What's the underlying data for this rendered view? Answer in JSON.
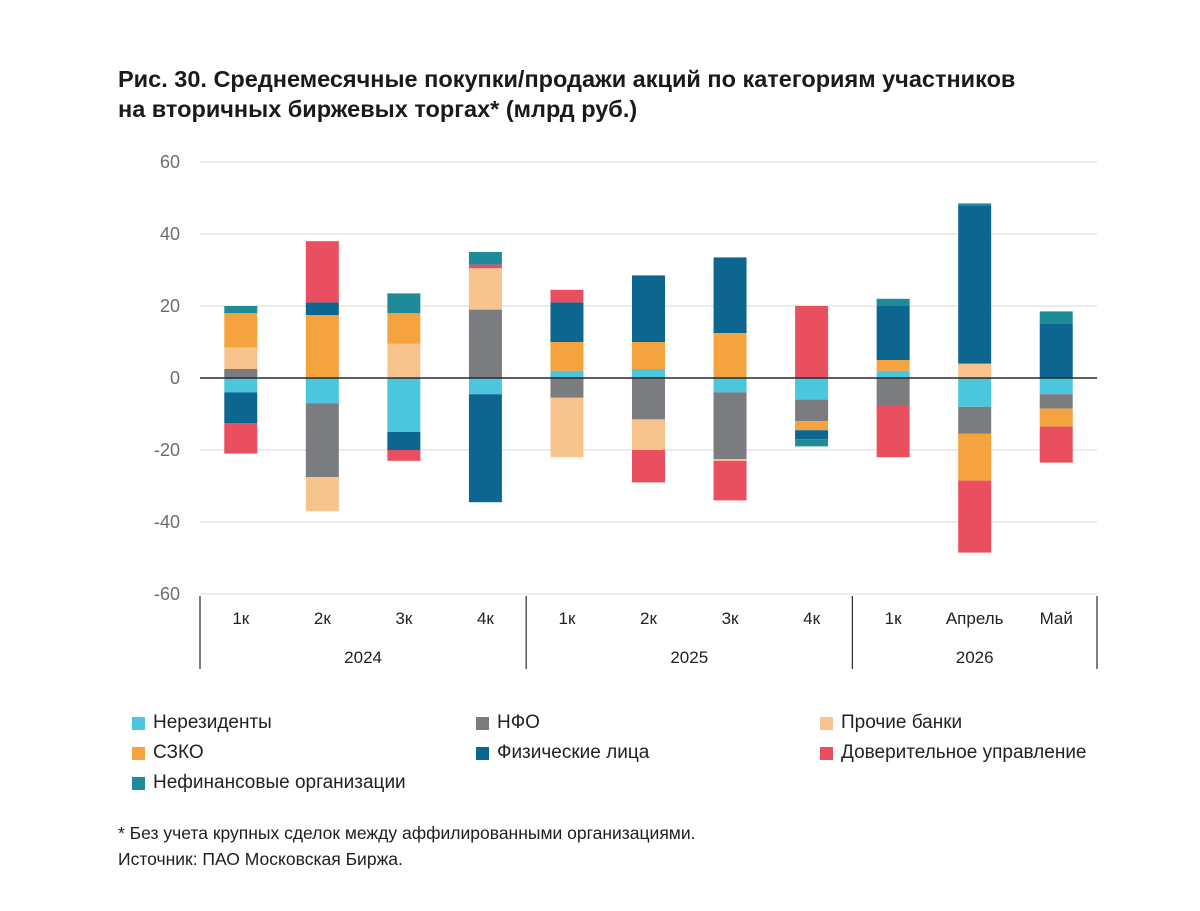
{
  "title_line1": "Рис. 30. Среднемесячные покупки/продажи акций по категориям участников",
  "title_line2": "на вторичных биржевых торгах* (млрд руб.)",
  "footnote": "* Без учета крупных сделок между аффилированными организациями.",
  "source": "Источник: ПАО Московская Биржа.",
  "colors": {
    "Нерезиденты": "#4cc6dd",
    "НФО": "#7b7c80",
    "Прочие банки": "#f7c48e",
    "СЗКО": "#f4a33f",
    "Физические лица": "#0d6690",
    "Доверительное управление": "#e94f5e",
    "Нефинансовые организации": "#1f8b98"
  },
  "chart_data": {
    "type": "bar",
    "stacked": true,
    "title": "Рис. 30. Среднемесячные покупки/продажи акций по категориям участников на вторичных биржевых торгах* (млрд руб.)",
    "ylim": [
      -60,
      60
    ],
    "yticks": [
      60,
      40,
      20,
      0,
      -20,
      -40,
      -60
    ],
    "grid": true,
    "legend_position": "bottom",
    "categories": [
      "1к",
      "2к",
      "3к",
      "4к",
      "1к",
      "2к",
      "3к",
      "4к",
      "1к",
      "Апрель",
      "Май"
    ],
    "groups": [
      {
        "label": "2024",
        "count": 4
      },
      {
        "label": "2025",
        "count": 4
      },
      {
        "label": "2026",
        "count": 3
      }
    ],
    "series": [
      {
        "name": "Нерезиденты",
        "values": [
          -4,
          -7,
          -15,
          -4.5,
          2,
          2.5,
          -4,
          -6,
          2,
          -8,
          -4.5
        ]
      },
      {
        "name": "НФО",
        "values": [
          2.5,
          -20.5,
          0,
          19,
          -5.5,
          -11.5,
          -18.5,
          -6,
          -7.5,
          -7.5,
          -4
        ]
      },
      {
        "name": "Прочие банки",
        "values": [
          6,
          -9.5,
          9.5,
          11.5,
          -16.5,
          -8.5,
          -0.5,
          0,
          0,
          4,
          0
        ]
      },
      {
        "name": "СЗКО",
        "values": [
          9.5,
          17.5,
          8.5,
          0,
          8,
          7.5,
          12.5,
          -2.5,
          3,
          -13,
          -5
        ]
      },
      {
        "name": "Физические лица",
        "values": [
          -8.5,
          3.5,
          -5,
          -30,
          11,
          18.5,
          21,
          -2.5,
          15,
          44,
          15
        ]
      },
      {
        "name": "Доверительное управление",
        "values": [
          -8.5,
          17,
          -3,
          1,
          3.5,
          -9,
          -11,
          20,
          -14.5,
          -20,
          -10
        ]
      },
      {
        "name": "Нефинансовые организации",
        "values": [
          2,
          0,
          5.5,
          3.5,
          0,
          0,
          0,
          -2,
          2,
          0.5,
          3.5
        ]
      }
    ]
  }
}
